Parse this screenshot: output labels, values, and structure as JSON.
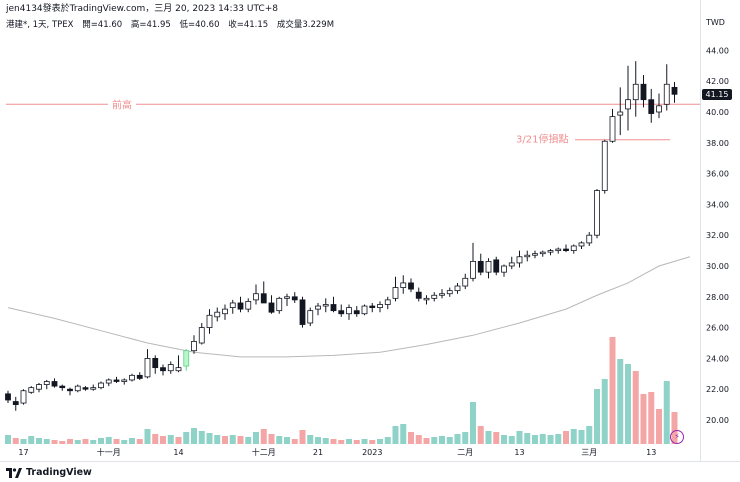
{
  "header": {
    "line1": "jen4134發表於TradingView.com，三月 20, 2023 14:33 UTC+8",
    "symbol": "港建*, 1天, TPEX",
    "open": "開=41.60",
    "high": "高=41.95",
    "low": "低=40.60",
    "close": "收=41.15",
    "volume": "成交量3.229M"
  },
  "axis": {
    "currency": "TWD",
    "y_ticks": [
      "44.00",
      "42.00",
      "40.00",
      "38.00",
      "36.00",
      "34.00",
      "32.00",
      "30.00",
      "28.00",
      "26.00",
      "24.00",
      "22.00",
      "20.00"
    ],
    "x_ticks": [
      "17",
      "十一月",
      "14",
      "十二月",
      "21",
      "2023",
      "二月",
      "13",
      "三月",
      "13"
    ],
    "last_price": "41.15"
  },
  "annotations": {
    "resistance_label": "前高",
    "stop_label": "3/21停損點"
  },
  "footer": {
    "brand": "TradingView"
  },
  "colors": {
    "up": "#ffffff",
    "down": "#131722",
    "outline": "#131722",
    "vol_up": "#8fd3c8",
    "vol_down": "#f4a5a5",
    "ma": "#b8b8b8",
    "line": "#ef8f8f"
  },
  "chart_data": {
    "type": "candlestick",
    "ylim": [
      19,
      45
    ],
    "resistance_level": 40.5,
    "stop_level": 38.2,
    "candles": [
      [
        21.7,
        21.9,
        21.1,
        21.3
      ],
      [
        21.2,
        21.5,
        20.6,
        21.0
      ],
      [
        21.1,
        22.0,
        21.0,
        21.9
      ],
      [
        21.8,
        22.2,
        21.7,
        22.1
      ],
      [
        22.0,
        22.4,
        21.8,
        22.3
      ],
      [
        22.3,
        22.6,
        22.0,
        22.5
      ],
      [
        22.5,
        22.7,
        22.1,
        22.2
      ],
      [
        22.2,
        22.3,
        21.9,
        22.1
      ],
      [
        22.0,
        22.1,
        21.6,
        21.9
      ],
      [
        21.9,
        22.3,
        21.8,
        22.2
      ],
      [
        22.1,
        22.2,
        21.9,
        22.0
      ],
      [
        22.0,
        22.3,
        21.9,
        22.1
      ],
      [
        22.1,
        22.5,
        22.0,
        22.4
      ],
      [
        22.4,
        22.7,
        22.2,
        22.6
      ],
      [
        22.6,
        22.8,
        22.4,
        22.5
      ],
      [
        22.5,
        22.7,
        22.3,
        22.6
      ],
      [
        22.6,
        23.0,
        22.5,
        22.9
      ],
      [
        22.9,
        23.1,
        22.6,
        22.7
      ],
      [
        22.8,
        24.6,
        22.7,
        24.0
      ],
      [
        24.0,
        24.2,
        23.0,
        23.4
      ],
      [
        23.4,
        23.6,
        22.9,
        23.2
      ],
      [
        23.2,
        23.8,
        23.0,
        23.6
      ],
      [
        23.2,
        24.2,
        23.1,
        23.4
      ],
      [
        23.5,
        24.6,
        23.2,
        24.5
      ],
      [
        24.5,
        25.5,
        24.3,
        25.1
      ],
      [
        25.0,
        26.3,
        24.9,
        26.0
      ],
      [
        26.0,
        27.2,
        25.6,
        26.8
      ],
      [
        26.7,
        27.3,
        26.4,
        27.0
      ],
      [
        26.9,
        27.5,
        26.5,
        27.2
      ],
      [
        27.3,
        27.8,
        26.9,
        27.6
      ],
      [
        27.6,
        28.0,
        27.0,
        27.2
      ],
      [
        27.2,
        27.9,
        27.0,
        27.7
      ],
      [
        27.8,
        28.8,
        27.5,
        28.2
      ],
      [
        28.2,
        29.0,
        27.8,
        27.6
      ],
      [
        27.6,
        28.1,
        26.9,
        27.0
      ],
      [
        27.1,
        28.0,
        26.9,
        27.9
      ],
      [
        27.9,
        28.2,
        27.4,
        28.0
      ],
      [
        28.0,
        28.3,
        27.6,
        27.8
      ],
      [
        27.8,
        28.0,
        26.0,
        26.2
      ],
      [
        26.3,
        27.3,
        26.1,
        27.1
      ],
      [
        27.2,
        27.6,
        26.8,
        27.4
      ],
      [
        27.4,
        27.9,
        27.0,
        27.5
      ],
      [
        27.5,
        28.0,
        27.0,
        27.1
      ],
      [
        27.1,
        27.5,
        26.7,
        26.9
      ],
      [
        26.9,
        27.5,
        26.5,
        27.3
      ],
      [
        27.1,
        27.4,
        26.7,
        26.9
      ],
      [
        26.9,
        27.5,
        26.8,
        27.4
      ],
      [
        27.4,
        27.6,
        27.0,
        27.3
      ],
      [
        27.3,
        27.7,
        27.0,
        27.5
      ],
      [
        27.5,
        28.0,
        27.2,
        27.8
      ],
      [
        27.9,
        29.3,
        27.7,
        28.6
      ],
      [
        28.6,
        29.4,
        28.2,
        28.9
      ],
      [
        28.9,
        29.2,
        28.3,
        28.5
      ],
      [
        28.3,
        28.6,
        27.7,
        27.9
      ],
      [
        27.8,
        28.1,
        27.5,
        27.9
      ],
      [
        27.9,
        28.3,
        27.7,
        28.1
      ],
      [
        28.1,
        28.5,
        27.9,
        28.2
      ],
      [
        28.2,
        28.6,
        28.0,
        28.4
      ],
      [
        28.4,
        28.9,
        28.2,
        28.7
      ],
      [
        28.7,
        29.5,
        28.5,
        29.2
      ],
      [
        29.2,
        31.5,
        29.0,
        30.3
      ],
      [
        30.3,
        30.8,
        29.4,
        29.6
      ],
      [
        29.6,
        30.5,
        29.2,
        30.3
      ],
      [
        30.4,
        30.6,
        29.4,
        29.6
      ],
      [
        29.6,
        30.1,
        29.3,
        30.0
      ],
      [
        30.0,
        30.6,
        29.8,
        30.2
      ],
      [
        30.2,
        31.0,
        29.9,
        30.6
      ],
      [
        30.6,
        31.0,
        30.3,
        30.7
      ],
      [
        30.7,
        31.0,
        30.5,
        30.8
      ],
      [
        30.8,
        31.0,
        30.6,
        30.9
      ],
      [
        30.9,
        31.1,
        30.7,
        31.0
      ],
      [
        31.0,
        31.2,
        30.8,
        31.1
      ],
      [
        31.1,
        31.4,
        30.9,
        31.0
      ],
      [
        31.0,
        31.4,
        30.8,
        31.3
      ],
      [
        31.3,
        31.6,
        31.1,
        31.5
      ],
      [
        31.5,
        32.2,
        31.3,
        32.0
      ],
      [
        32.0,
        35.0,
        31.8,
        34.9
      ],
      [
        34.9,
        38.2,
        34.7,
        38.1
      ],
      [
        38.1,
        40.2,
        38.0,
        39.7
      ],
      [
        39.8,
        41.6,
        38.5,
        40.0
      ],
      [
        40.2,
        43.0,
        38.8,
        40.8
      ],
      [
        40.8,
        43.3,
        39.7,
        41.8
      ],
      [
        41.8,
        42.4,
        40.3,
        40.8
      ],
      [
        40.8,
        41.5,
        39.3,
        39.9
      ],
      [
        40.0,
        41.2,
        39.6,
        40.4
      ],
      [
        40.5,
        43.1,
        40.1,
        41.8
      ],
      [
        41.6,
        41.95,
        40.6,
        41.15
      ]
    ],
    "volumes": [
      [
        0.9,
        "u"
      ],
      [
        0.6,
        "d"
      ],
      [
        0.5,
        "u"
      ],
      [
        0.8,
        "u"
      ],
      [
        0.6,
        "u"
      ],
      [
        0.5,
        "u"
      ],
      [
        0.4,
        "d"
      ],
      [
        0.3,
        "d"
      ],
      [
        0.5,
        "d"
      ],
      [
        0.4,
        "u"
      ],
      [
        0.5,
        "d"
      ],
      [
        0.4,
        "u"
      ],
      [
        0.6,
        "u"
      ],
      [
        0.7,
        "u"
      ],
      [
        0.5,
        "d"
      ],
      [
        0.4,
        "u"
      ],
      [
        0.6,
        "u"
      ],
      [
        0.5,
        "d"
      ],
      [
        1.5,
        "u"
      ],
      [
        1.0,
        "d"
      ],
      [
        0.8,
        "d"
      ],
      [
        0.9,
        "u"
      ],
      [
        0.7,
        "d"
      ],
      [
        1.2,
        "u"
      ],
      [
        1.6,
        "u"
      ],
      [
        1.3,
        "u"
      ],
      [
        1.1,
        "u"
      ],
      [
        0.9,
        "u"
      ],
      [
        0.8,
        "d"
      ],
      [
        0.9,
        "u"
      ],
      [
        0.8,
        "d"
      ],
      [
        0.7,
        "u"
      ],
      [
        1.2,
        "u"
      ],
      [
        1.5,
        "d"
      ],
      [
        1.0,
        "d"
      ],
      [
        0.8,
        "u"
      ],
      [
        0.7,
        "u"
      ],
      [
        0.5,
        "d"
      ],
      [
        1.4,
        "d"
      ],
      [
        0.9,
        "u"
      ],
      [
        0.7,
        "u"
      ],
      [
        0.6,
        "u"
      ],
      [
        0.5,
        "d"
      ],
      [
        0.4,
        "d"
      ],
      [
        0.5,
        "u"
      ],
      [
        0.4,
        "d"
      ],
      [
        0.5,
        "u"
      ],
      [
        0.4,
        "d"
      ],
      [
        0.5,
        "u"
      ],
      [
        0.7,
        "u"
      ],
      [
        1.8,
        "u"
      ],
      [
        2.0,
        "u"
      ],
      [
        1.2,
        "d"
      ],
      [
        0.9,
        "d"
      ],
      [
        0.6,
        "d"
      ],
      [
        0.7,
        "u"
      ],
      [
        0.8,
        "u"
      ],
      [
        0.7,
        "u"
      ],
      [
        1.0,
        "u"
      ],
      [
        1.2,
        "u"
      ],
      [
        4.2,
        "u"
      ],
      [
        1.8,
        "d"
      ],
      [
        1.3,
        "u"
      ],
      [
        1.2,
        "d"
      ],
      [
        0.9,
        "u"
      ],
      [
        0.8,
        "u"
      ],
      [
        1.3,
        "u"
      ],
      [
        1.1,
        "u"
      ],
      [
        0.9,
        "u"
      ],
      [
        1.0,
        "u"
      ],
      [
        0.9,
        "u"
      ],
      [
        1.0,
        "u"
      ],
      [
        1.3,
        "d"
      ],
      [
        1.5,
        "u"
      ],
      [
        1.4,
        "u"
      ],
      [
        1.8,
        "u"
      ],
      [
        5.5,
        "u"
      ],
      [
        6.5,
        "u"
      ],
      [
        10.7,
        "d"
      ],
      [
        8.5,
        "u"
      ],
      [
        8.0,
        "u"
      ],
      [
        7.3,
        "d"
      ],
      [
        5.0,
        "d"
      ],
      [
        5.2,
        "d"
      ],
      [
        3.5,
        "d"
      ],
      [
        6.3,
        "u"
      ],
      [
        3.2,
        "d"
      ]
    ],
    "ma": [
      [
        0,
        27.3
      ],
      [
        6,
        26.6
      ],
      [
        12,
        25.8
      ],
      [
        18,
        25.0
      ],
      [
        24,
        24.4
      ],
      [
        30,
        24.1
      ],
      [
        36,
        24.1
      ],
      [
        42,
        24.2
      ],
      [
        48,
        24.4
      ],
      [
        54,
        24.9
      ],
      [
        60,
        25.5
      ],
      [
        66,
        26.3
      ],
      [
        72,
        27.2
      ],
      [
        76,
        28.1
      ],
      [
        80,
        28.9
      ],
      [
        84,
        30.0
      ],
      [
        88,
        30.6
      ]
    ]
  }
}
